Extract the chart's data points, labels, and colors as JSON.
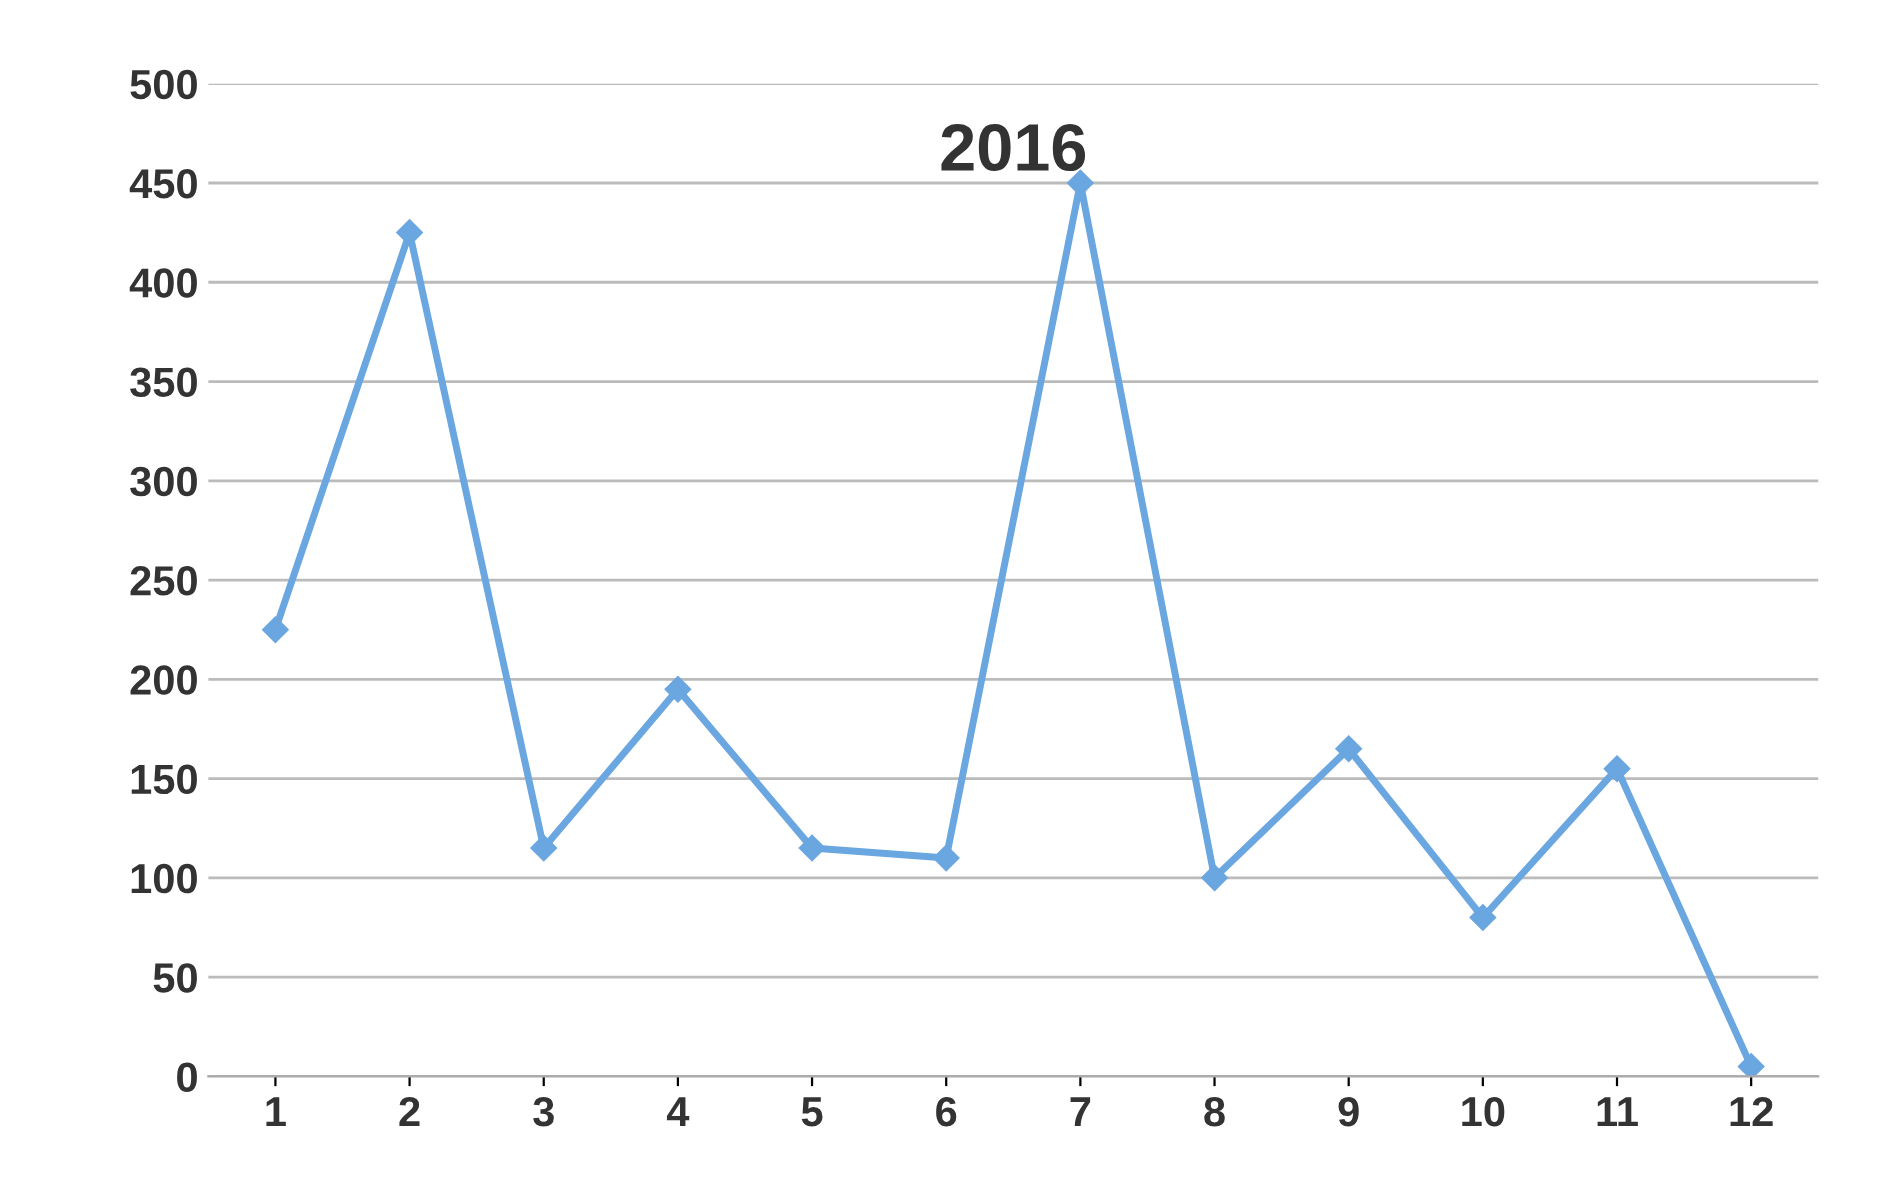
{
  "chart_data": {
    "type": "line",
    "title": "2016",
    "categories": [
      "1",
      "2",
      "3",
      "4",
      "5",
      "6",
      "7",
      "8",
      "9",
      "10",
      "11",
      "12"
    ],
    "series": [
      {
        "color": "#6aa6e0",
        "values": [
          225,
          425,
          115,
          195,
          115,
          110,
          450,
          100,
          165,
          80,
          155,
          5
        ]
      }
    ],
    "ylim": [
      0,
      500
    ],
    "yticks": [
      0,
      50,
      100,
      150,
      200,
      250,
      300,
      350,
      400,
      450,
      500
    ],
    "grid": "y",
    "marker": "diamond",
    "line_style": "solid"
  }
}
